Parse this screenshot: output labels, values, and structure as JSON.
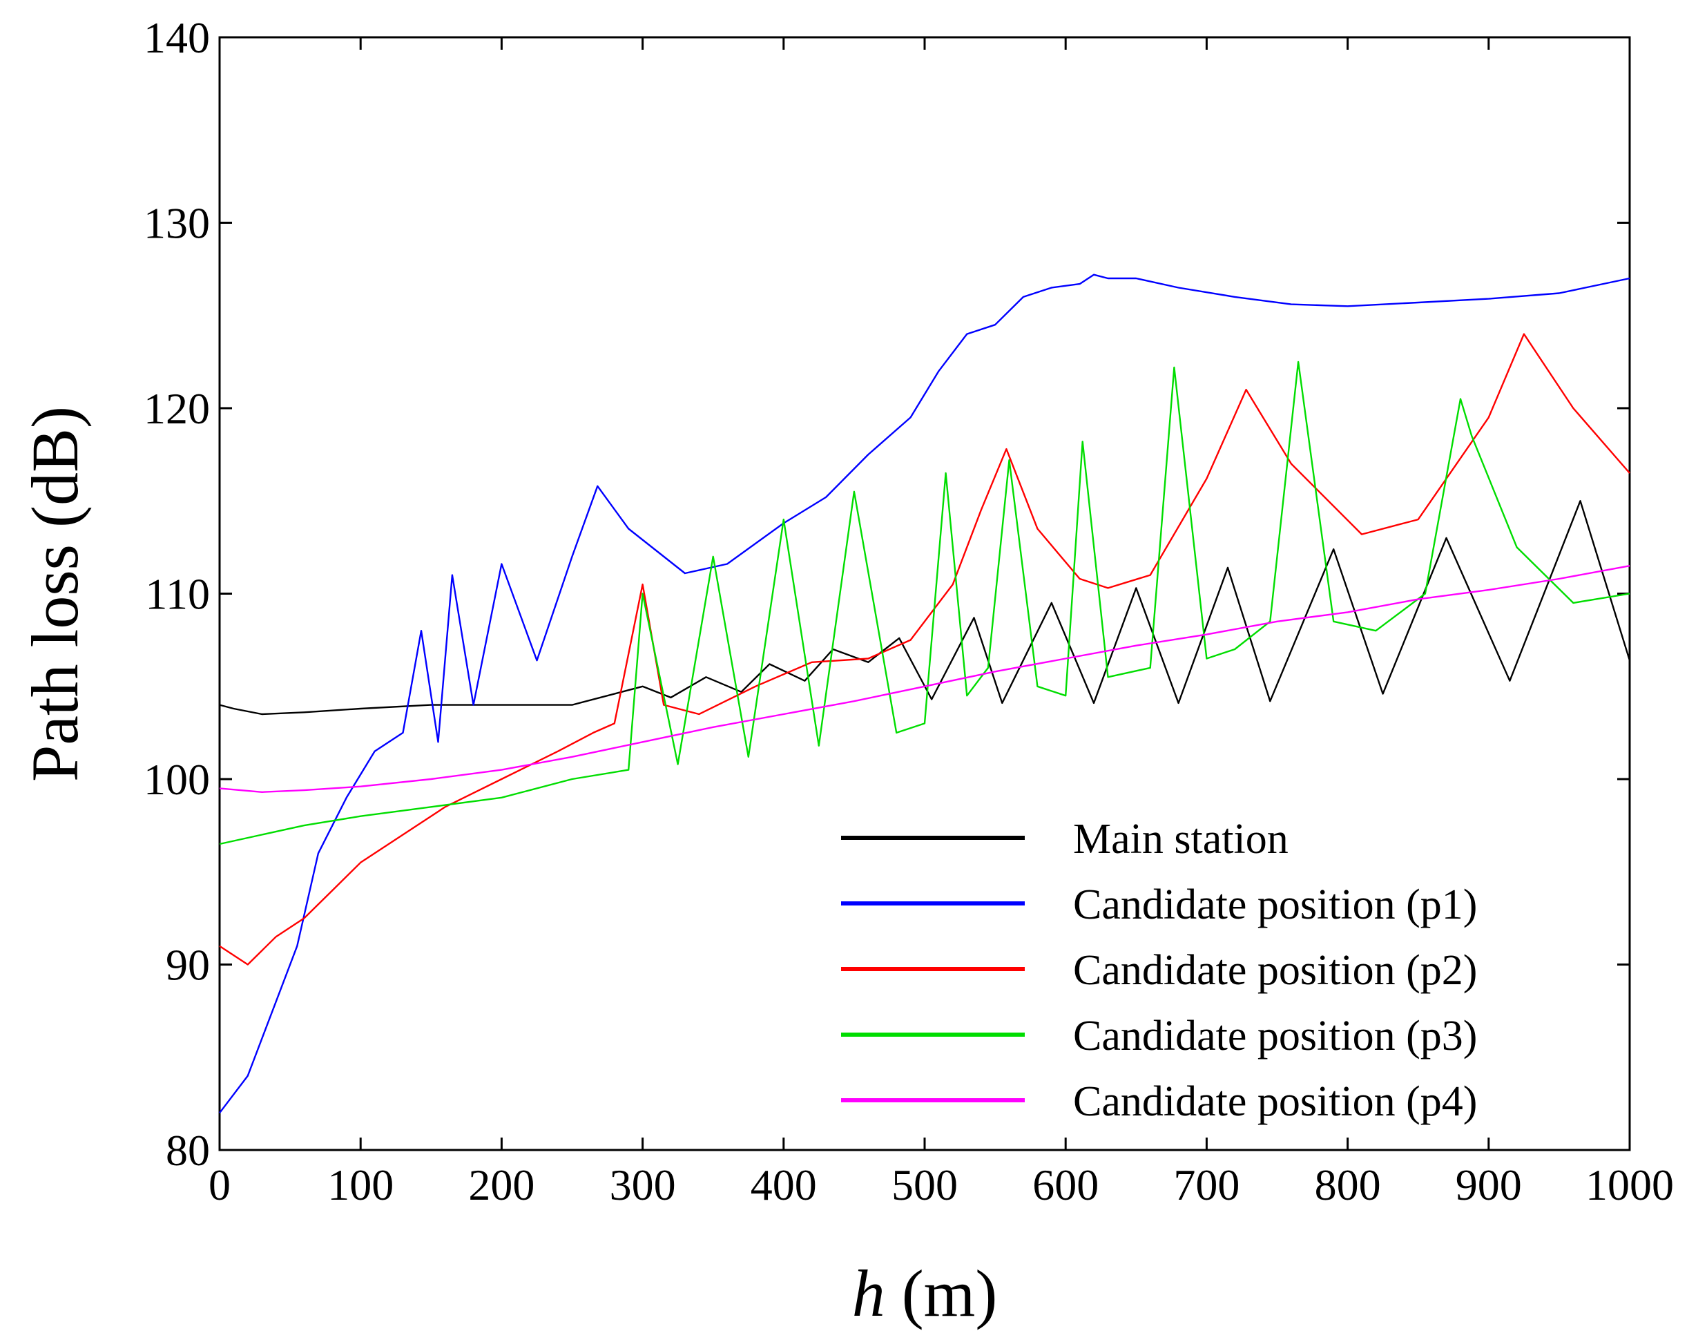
{
  "chart_data": {
    "type": "line",
    "xlabel_var": "h",
    "xlabel_unit": " (m)",
    "ylabel": "Path loss (dB)",
    "xlim": [
      0,
      1000
    ],
    "ylim": [
      80,
      140
    ],
    "xticks": [
      0,
      100,
      200,
      300,
      400,
      500,
      600,
      700,
      800,
      900,
      1000
    ],
    "yticks": [
      80,
      90,
      100,
      110,
      120,
      130,
      140
    ],
    "grid": false,
    "legend_position": "bottom-right",
    "series": [
      {
        "name": "Main station",
        "color": "#000000",
        "x": [
          0,
          10,
          30,
          60,
          100,
          150,
          200,
          250,
          300,
          320,
          345,
          370,
          390,
          415,
          435,
          460,
          482,
          505,
          535,
          555,
          590,
          620,
          650,
          680,
          715,
          745,
          790,
          825,
          870,
          915,
          965,
          1000
        ],
        "y": [
          104,
          103.8,
          103.5,
          103.6,
          103.8,
          104,
          104,
          104,
          105,
          104.4,
          105.5,
          104.7,
          106.2,
          105.3,
          107,
          106.3,
          107.6,
          104.3,
          108.7,
          104.1,
          109.5,
          104.1,
          110.3,
          104.1,
          111.4,
          104.2,
          112.4,
          104.6,
          113,
          105.3,
          115,
          106.4
        ]
      },
      {
        "name": "Candidate position (p1)",
        "color": "#0000ff",
        "x": [
          0,
          20,
          40,
          55,
          70,
          90,
          110,
          130,
          143,
          155,
          165,
          180,
          200,
          225,
          250,
          268,
          290,
          330,
          360,
          400,
          430,
          460,
          490,
          510,
          530,
          550,
          570,
          590,
          610,
          620,
          630,
          650,
          680,
          720,
          760,
          800,
          850,
          900,
          950,
          1000
        ],
        "y": [
          82,
          84,
          88,
          91,
          96,
          99,
          101.5,
          102.5,
          108,
          102,
          111,
          104,
          111.6,
          106.4,
          112,
          115.8,
          113.5,
          111.1,
          111.6,
          113.8,
          115.2,
          117.5,
          119.5,
          122,
          124,
          124.5,
          126,
          126.5,
          126.7,
          127.2,
          127,
          127,
          126.5,
          126,
          125.6,
          125.5,
          125.7,
          125.9,
          126.2,
          127
        ]
      },
      {
        "name": "Candidate position (p2)",
        "color": "#ff0000",
        "x": [
          0,
          20,
          40,
          60,
          80,
          100,
          130,
          160,
          200,
          240,
          265,
          280,
          300,
          315,
          340,
          380,
          420,
          460,
          490,
          520,
          540,
          558,
          580,
          610,
          630,
          660,
          700,
          728,
          760,
          810,
          850,
          900,
          925,
          960,
          1000
        ],
        "y": [
          91,
          90,
          91.5,
          92.5,
          94,
          95.5,
          97,
          98.5,
          100,
          101.5,
          102.5,
          103,
          110.5,
          104,
          103.5,
          105,
          106.3,
          106.5,
          107.5,
          110.5,
          114.5,
          117.8,
          113.5,
          110.8,
          110.3,
          111,
          116.2,
          121,
          117,
          113.2,
          114,
          119.5,
          124,
          120,
          116.5
        ]
      },
      {
        "name": "Candidate position (p3)",
        "color": "#00dd00",
        "x": [
          0,
          30,
          60,
          100,
          150,
          200,
          250,
          290,
          300,
          325,
          350,
          375,
          400,
          425,
          450,
          480,
          500,
          515,
          530,
          545,
          560,
          580,
          600,
          612,
          630,
          660,
          677,
          700,
          720,
          745,
          765,
          790,
          820,
          855,
          880,
          888,
          920,
          960,
          1000
        ],
        "y": [
          96.5,
          97,
          97.5,
          98,
          98.5,
          99,
          100,
          100.5,
          110,
          100.8,
          112,
          101.2,
          114,
          101.8,
          115.5,
          102.5,
          103,
          116.5,
          104.5,
          106,
          117.2,
          105,
          104.5,
          118.2,
          105.5,
          106,
          122.2,
          106.5,
          107,
          108.5,
          122.5,
          108.5,
          108,
          110,
          120.5,
          118.5,
          112.5,
          109.5,
          110
        ]
      },
      {
        "name": "Candidate position (p4)",
        "color": "#ff00ff",
        "x": [
          0,
          30,
          60,
          100,
          150,
          200,
          250,
          300,
          350,
          400,
          450,
          500,
          550,
          600,
          650,
          700,
          750,
          800,
          850,
          900,
          950,
          1000
        ],
        "y": [
          99.5,
          99.3,
          99.4,
          99.6,
          100,
          100.5,
          101.2,
          102,
          102.8,
          103.5,
          104.2,
          105,
          105.8,
          106.5,
          107.2,
          107.8,
          108.5,
          109,
          109.7,
          110.2,
          110.8,
          111.5
        ]
      }
    ]
  }
}
